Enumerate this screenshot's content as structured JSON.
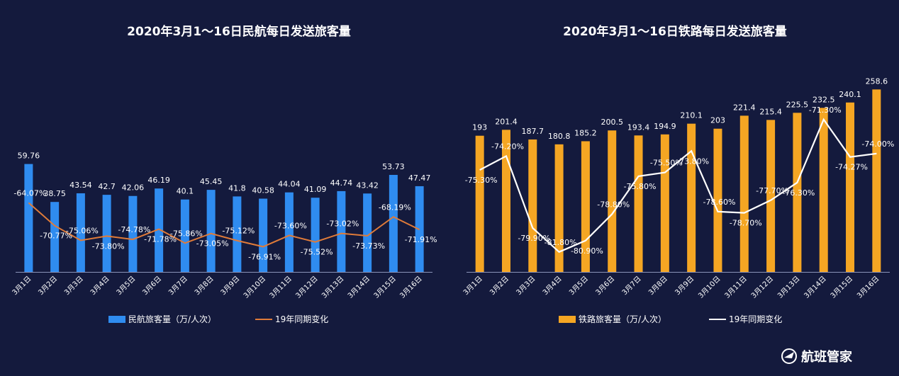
{
  "brand": {
    "name": "航班管家",
    "icon": "airplane-swirl-icon"
  },
  "chart_data": [
    {
      "type": "bar",
      "title": "2020年3月1～16日民航每日发送旅客量",
      "categories": [
        "3月1日",
        "3月2日",
        "3月3日",
        "3月4日",
        "3月5日",
        "3月6日",
        "3月7日",
        "3月8日",
        "3月9日",
        "3月10日",
        "3月11日",
        "3月12日",
        "3月13日",
        "3月14日",
        "3月15日",
        "3月16日"
      ],
      "series": [
        {
          "name": "民航旅客量（万/人次）",
          "kind": "bar",
          "color": "#2f8cf0",
          "values": [
            59.76,
            38.75,
            43.54,
            42.7,
            42.06,
            46.19,
            40.1,
            45.45,
            41.8,
            40.58,
            44.04,
            41.09,
            44.74,
            43.42,
            53.73,
            47.47
          ],
          "labels": [
            "59.76",
            "38.75",
            "43.54",
            "42.7",
            "42.06",
            "46.19",
            "40.1",
            "45.45",
            "41.8",
            "40.58",
            "44.04",
            "41.09",
            "44.74",
            "43.42",
            "53.73",
            "47.47"
          ]
        },
        {
          "name": "19年同期变化",
          "kind": "line",
          "color": "#e07b39",
          "values": [
            -64.07,
            -70.77,
            -75.06,
            -73.8,
            -74.78,
            -71.78,
            -75.86,
            -73.05,
            -75.12,
            -76.91,
            -73.6,
            -75.52,
            -73.02,
            -73.73,
            -68.19,
            -71.91
          ],
          "labels": [
            "-64.07%",
            "-70.77%",
            "-75.06%",
            "-73.80%",
            "-74.78%",
            "-71.78%",
            "-75.86%",
            "-73.05%",
            "-75.12%",
            "-76.91%",
            "-73.60%",
            "-75.52%",
            "-73.02%",
            "-73.73%",
            "-68.19%",
            "-71.91%"
          ]
        }
      ],
      "bar_ylim": [
        0,
        80
      ],
      "line_ylim": [
        -100,
        -40
      ],
      "legend": "bottom",
      "grid": false
    },
    {
      "type": "bar",
      "title": "2020年3月1～16日铁路每日发送旅客量",
      "categories": [
        "3月1日",
        "3月2日",
        "3月3日",
        "3月4日",
        "3月5日",
        "3月6日",
        "3月7日",
        "3月8日",
        "3月9日",
        "3月10日",
        "3月11日",
        "3月12日",
        "3月13日",
        "3月14日",
        "3月15日",
        "3月16日"
      ],
      "series": [
        {
          "name": "铁路旅客量（万/人次）",
          "kind": "bar",
          "color": "#f5a623",
          "values": [
            193,
            201.4,
            187.7,
            180.8,
            185.2,
            200.5,
            193.4,
            194.9,
            210.1,
            203,
            221.4,
            215.4,
            225.5,
            232.5,
            240.1,
            258.6
          ],
          "labels": [
            "193",
            "201.4",
            "187.7",
            "180.8",
            "185.2",
            "200.5",
            "193.4",
            "194.9",
            "210.1",
            "203",
            "221.4",
            "215.4",
            "225.5",
            "232.5",
            "240.1",
            "258.6"
          ]
        },
        {
          "name": "19年同期变化",
          "kind": "line",
          "color": "#ffffff",
          "values": [
            -75.3,
            -74.2,
            -79.9,
            -81.8,
            -80.9,
            -78.8,
            -75.8,
            -75.5,
            -73.8,
            -78.6,
            -78.7,
            -77.7,
            -76.3,
            -71.3,
            -74.27,
            -74.0
          ],
          "labels": [
            "-75.30%",
            "-74.20%",
            "-79.90%",
            "-81.80%",
            "-80.90%",
            "-78.80%",
            "-75.80%",
            "-75.50%",
            "-73.80%",
            "-78.60%",
            "-78.70%",
            "-77.70%",
            "-76.30%",
            "-71.30%",
            "-74.27%",
            "-74.00%"
          ]
        }
      ],
      "bar_ylim": [
        0,
        280
      ],
      "line_ylim": [
        -84,
        -68
      ],
      "legend": "bottom",
      "grid": false
    }
  ]
}
